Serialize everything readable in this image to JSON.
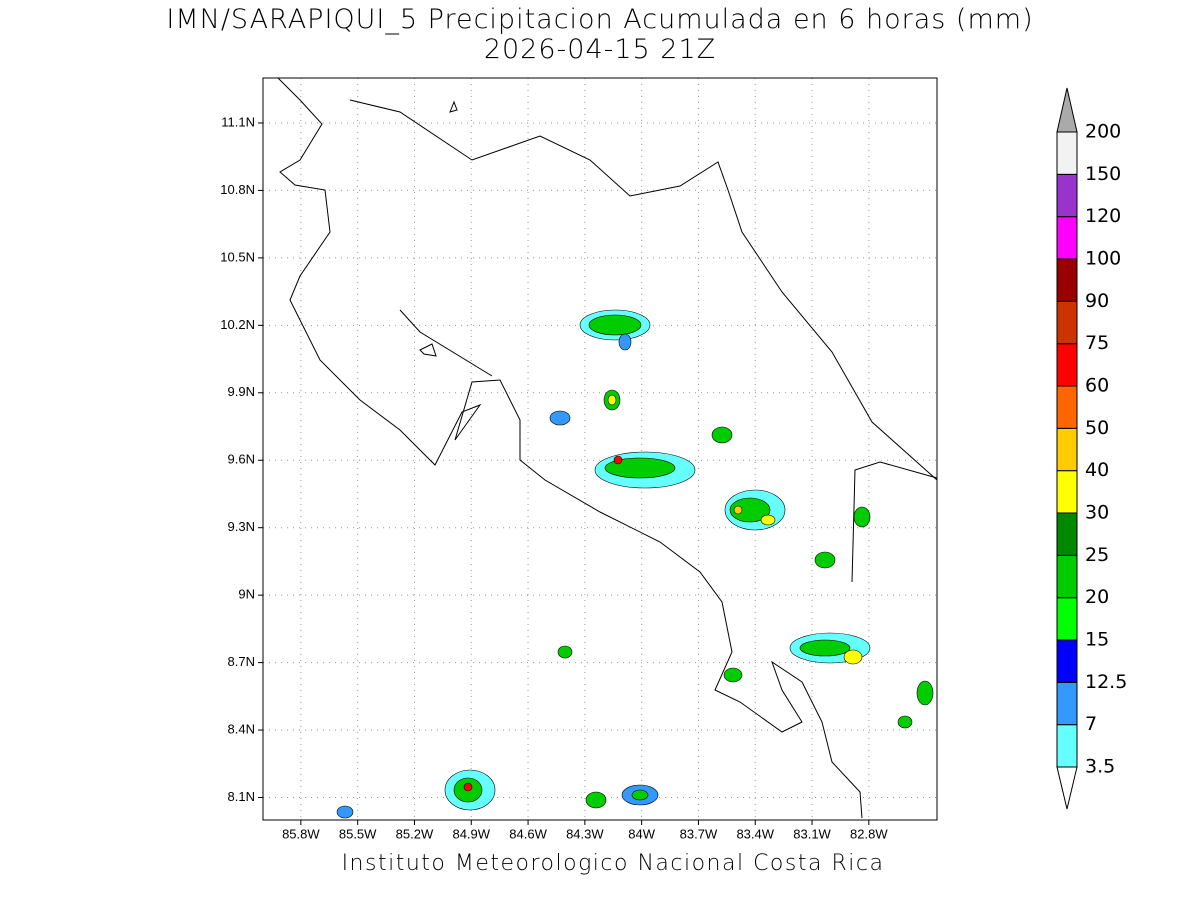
{
  "map": {
    "title": "IMN/SARAPIQUI_5 Precipitacion Acumulada en 6 horas (mm)",
    "subtitle": "2026-04-15 21Z",
    "footer": "Instituto Meteorologico Nacional Costa Rica",
    "xlim": [
      -86.0,
      -82.44
    ],
    "ylim": [
      8.0,
      11.3
    ],
    "grid": true,
    "xticks": [
      {
        "value": -85.8,
        "label": "85.8W"
      },
      {
        "value": -85.5,
        "label": "85.5W"
      },
      {
        "value": -85.2,
        "label": "85.2W"
      },
      {
        "value": -84.9,
        "label": "84.9W"
      },
      {
        "value": -84.6,
        "label": "84.6W"
      },
      {
        "value": -84.3,
        "label": "84.3W"
      },
      {
        "value": -84.0,
        "label": "84W"
      },
      {
        "value": -83.7,
        "label": "83.7W"
      },
      {
        "value": -83.4,
        "label": "83.4W"
      },
      {
        "value": -83.1,
        "label": "83.1W"
      },
      {
        "value": -82.8,
        "label": "82.8W"
      }
    ],
    "yticks": [
      {
        "value": 11.1,
        "label": "11.1N"
      },
      {
        "value": 10.8,
        "label": "10.8N"
      },
      {
        "value": 10.5,
        "label": "10.5N"
      },
      {
        "value": 10.2,
        "label": "10.2N"
      },
      {
        "value": 9.9,
        "label": "9.9N"
      },
      {
        "value": 9.6,
        "label": "9.6N"
      },
      {
        "value": 9.3,
        "label": "9.3N"
      },
      {
        "value": 9.0,
        "label": "9N"
      },
      {
        "value": 8.7,
        "label": "8.7N"
      },
      {
        "value": 8.4,
        "label": "8.4N"
      },
      {
        "value": 8.1,
        "label": "8.1N"
      }
    ]
  },
  "colorbar": {
    "levels": [
      3.5,
      7,
      12.5,
      15,
      20,
      25,
      30,
      40,
      50,
      60,
      75,
      90,
      100,
      120,
      150,
      200
    ],
    "colors": [
      "#66ffff",
      "#3399ff",
      "#0000ff",
      "#00ff00",
      "#00cc00",
      "#008800",
      "#ffff00",
      "#ffcc00",
      "#ff6600",
      "#ff0000",
      "#cc3300",
      "#990000",
      "#ff00ff",
      "#9933cc",
      "#f2f2f2"
    ],
    "under_color": "#ffffff",
    "over_color": "#aaaaaa"
  }
}
